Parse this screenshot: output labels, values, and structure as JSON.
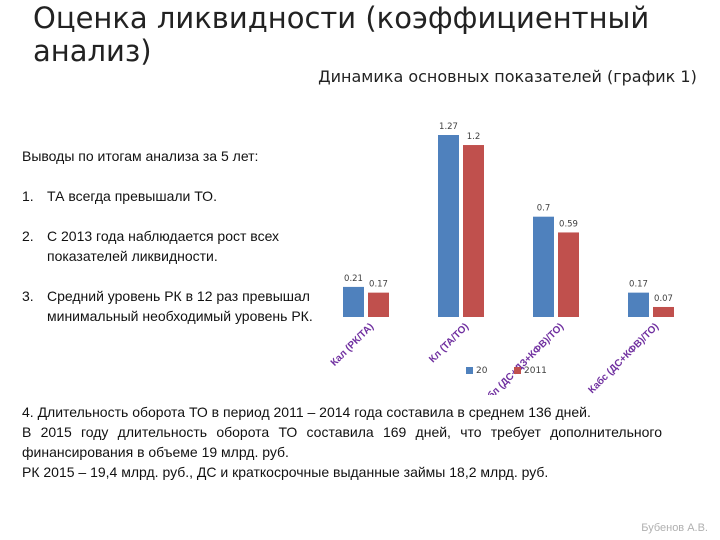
{
  "slide": {
    "title": "Оценка ликвидности (коэффициентный анализ)",
    "author": "Бубенов А.В."
  },
  "conclusions": {
    "heading": "Выводы по итогам анализа за 5 лет:",
    "items": [
      {
        "num": "1.",
        "text": "ТА всегда превышали ТО."
      },
      {
        "num": "2.",
        "text": "С 2013 года наблюдается рост всех показателей ликвидности."
      },
      {
        "num": "3.",
        "text": "Средний уровень РК в 12 раз превышал минимальный необходимый уровень РК."
      }
    ]
  },
  "bottom_text": {
    "p1": "4.  Длительность оборота ТО в период 2011 – 2014 года составила в среднем 136 дней.",
    "p2": "В 2015 году длительность оборота ТО составила 169 дней, что требует дополнительного финансирования в объеме 19 млрд. руб.",
    "p3": "РК 2015 – 19,4 млрд. руб., ДС и краткосрочные выданные займы 18,2 млрд. руб."
  },
  "chart_data": {
    "type": "bar",
    "title": "Динамика основных показателей (график 1)",
    "categories": [
      "Кал (РК/ТА)",
      "Кл (ТА/ТО)",
      "Кбл (ДС+ДЗ+КФВ)/ТО)",
      "Кабс (ДС+КФВ)/ТО)"
    ],
    "series": [
      {
        "name": "20",
        "values": [
          0.21,
          1.27,
          0.7,
          0.17
        ],
        "color": "#4f81bd"
      },
      {
        "name": "2011",
        "values": [
          0.17,
          1.2,
          0.59,
          0.07
        ],
        "color": "#c0504d"
      }
    ],
    "value_labels": [
      [
        "0.21",
        "1.27",
        "0.7",
        "0.17"
      ],
      [
        "0.17",
        "1.2",
        "0.59",
        "0.07"
      ]
    ],
    "ylim": [
      0,
      1.27
    ],
    "legend_position": "bottom",
    "grid": false
  }
}
